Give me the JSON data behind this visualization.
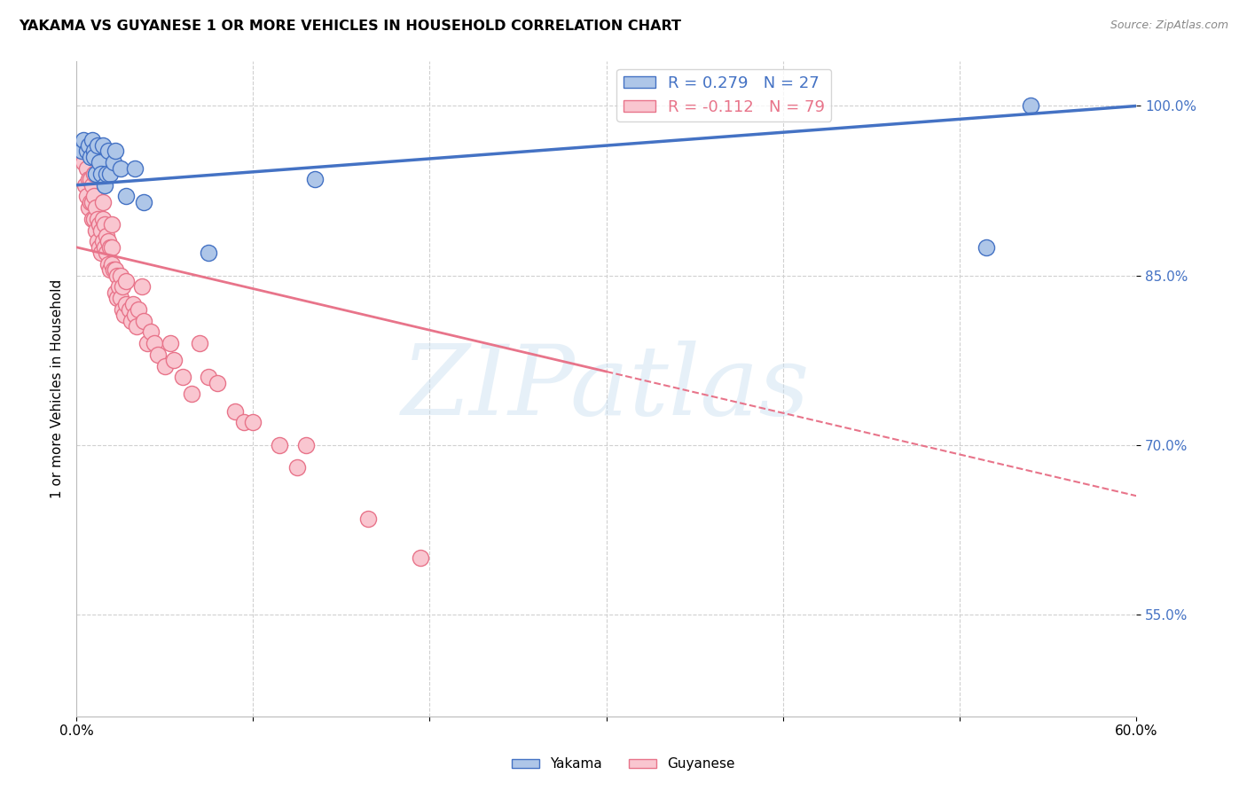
{
  "title": "YAKAMA VS GUYANESE 1 OR MORE VEHICLES IN HOUSEHOLD CORRELATION CHART",
  "source": "Source: ZipAtlas.com",
  "ylabel": "1 or more Vehicles in Household",
  "xlim": [
    0.0,
    0.6
  ],
  "ylim": [
    0.46,
    1.04
  ],
  "xticks": [
    0.0,
    0.1,
    0.2,
    0.3,
    0.4,
    0.5,
    0.6
  ],
  "xticklabels": [
    "0.0%",
    "",
    "",
    "",
    "",
    "",
    "60.0%"
  ],
  "ytick_positions": [
    0.55,
    0.7,
    0.85,
    1.0
  ],
  "yticklabels_right": [
    "55.0%",
    "70.0%",
    "85.0%",
    "100.0%"
  ],
  "r_yakama": 0.279,
  "n_yakama": 27,
  "r_guyanese": -0.112,
  "n_guyanese": 79,
  "watermark": "ZIPatlas",
  "yakama_color": "#aec6e8",
  "yakama_edge_color": "#4472c4",
  "guyanese_color": "#f9c6d0",
  "guyanese_edge_color": "#e8748a",
  "trend_yakama_color": "#4472c4",
  "trend_guyanese_color": "#e8748a",
  "yakama_points_x": [
    0.003,
    0.004,
    0.006,
    0.007,
    0.008,
    0.009,
    0.01,
    0.01,
    0.011,
    0.012,
    0.013,
    0.014,
    0.015,
    0.016,
    0.017,
    0.018,
    0.019,
    0.021,
    0.022,
    0.025,
    0.028,
    0.033,
    0.038,
    0.075,
    0.135,
    0.515,
    0.54
  ],
  "yakama_points_y": [
    0.96,
    0.97,
    0.96,
    0.965,
    0.955,
    0.97,
    0.96,
    0.955,
    0.94,
    0.965,
    0.95,
    0.94,
    0.965,
    0.93,
    0.94,
    0.96,
    0.94,
    0.95,
    0.96,
    0.945,
    0.92,
    0.945,
    0.915,
    0.87,
    0.935,
    0.875,
    1.0
  ],
  "guyanese_points_x": [
    0.003,
    0.004,
    0.005,
    0.005,
    0.006,
    0.006,
    0.007,
    0.007,
    0.008,
    0.008,
    0.009,
    0.009,
    0.009,
    0.01,
    0.01,
    0.01,
    0.011,
    0.011,
    0.012,
    0.012,
    0.013,
    0.013,
    0.014,
    0.014,
    0.015,
    0.015,
    0.015,
    0.016,
    0.016,
    0.017,
    0.017,
    0.018,
    0.018,
    0.019,
    0.019,
    0.02,
    0.02,
    0.02,
    0.021,
    0.022,
    0.022,
    0.023,
    0.023,
    0.024,
    0.025,
    0.025,
    0.026,
    0.026,
    0.027,
    0.028,
    0.028,
    0.03,
    0.031,
    0.032,
    0.033,
    0.034,
    0.035,
    0.037,
    0.038,
    0.04,
    0.042,
    0.044,
    0.046,
    0.05,
    0.053,
    0.055,
    0.06,
    0.065,
    0.07,
    0.075,
    0.08,
    0.09,
    0.095,
    0.1,
    0.115,
    0.125,
    0.13,
    0.165,
    0.195
  ],
  "guyanese_points_y": [
    0.965,
    0.95,
    0.93,
    0.96,
    0.92,
    0.945,
    0.91,
    0.935,
    0.915,
    0.935,
    0.9,
    0.915,
    0.93,
    0.9,
    0.92,
    0.94,
    0.89,
    0.91,
    0.88,
    0.9,
    0.875,
    0.895,
    0.87,
    0.89,
    0.88,
    0.9,
    0.915,
    0.875,
    0.895,
    0.87,
    0.885,
    0.86,
    0.88,
    0.855,
    0.875,
    0.86,
    0.875,
    0.895,
    0.855,
    0.835,
    0.855,
    0.83,
    0.85,
    0.84,
    0.83,
    0.85,
    0.82,
    0.84,
    0.815,
    0.825,
    0.845,
    0.82,
    0.81,
    0.825,
    0.815,
    0.805,
    0.82,
    0.84,
    0.81,
    0.79,
    0.8,
    0.79,
    0.78,
    0.77,
    0.79,
    0.775,
    0.76,
    0.745,
    0.79,
    0.76,
    0.755,
    0.73,
    0.72,
    0.72,
    0.7,
    0.68,
    0.7,
    0.635,
    0.6
  ],
  "trend_guyanese_x0": 0.0,
  "trend_guyanese_y0": 0.875,
  "trend_guyanese_x1": 0.3,
  "trend_guyanese_y1": 0.765,
  "trend_guyanese_dash_x0": 0.3,
  "trend_guyanese_dash_y0": 0.765,
  "trend_guyanese_dash_x1": 0.6,
  "trend_guyanese_dash_y1": 0.655,
  "trend_yakama_x0": 0.0,
  "trend_yakama_y0": 0.93,
  "trend_yakama_x1": 0.6,
  "trend_yakama_y1": 1.0
}
